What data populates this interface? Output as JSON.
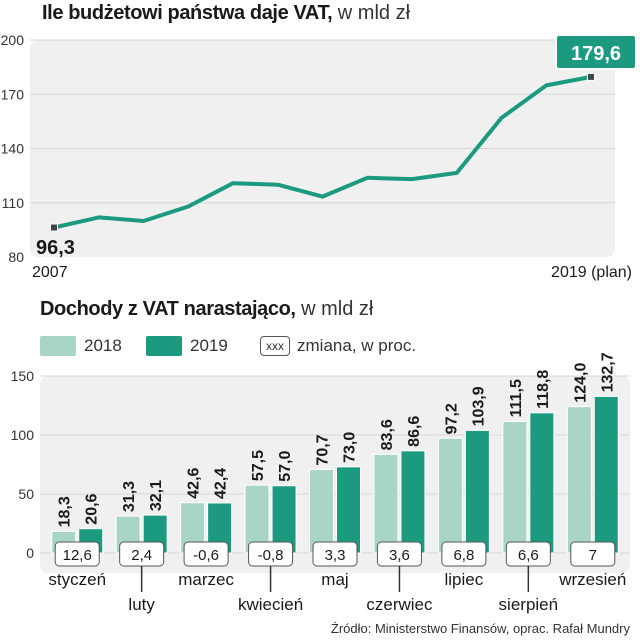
{
  "top_title": {
    "bold": "Ile budżetowi państwa daje VAT,",
    "unit": " w mld zł"
  },
  "bottom_title": {
    "bold": "Dochody z VAT narastająco,",
    "unit": " w mld zł"
  },
  "legend": {
    "s2018": "2018",
    "s2019": "2019",
    "change_box": "xxx",
    "change_label": "zmiana, w proc."
  },
  "source": "Źródło: Ministerstwo Finansów, oprac. Rafał Mundry",
  "colors": {
    "light_teal": "#a9d5c8",
    "dark_teal": "#1b9a80",
    "panel": "#f0f0f0",
    "grid": "#d6d6d6"
  },
  "chart_data": [
    {
      "type": "line",
      "title": "Ile budżetowi państwa daje VAT, w mld zł",
      "x": [
        2007,
        2008,
        2009,
        2010,
        2011,
        2012,
        2013,
        2014,
        2015,
        2016,
        2017,
        2018,
        2019
      ],
      "x_tick_labels": [
        "2007",
        "2019 (plan)"
      ],
      "y": [
        96.3,
        101.9,
        99.9,
        107.9,
        120.8,
        120.0,
        113.4,
        123.8,
        123.1,
        126.5,
        156.9,
        174.9,
        179.6
      ],
      "ylim": [
        80,
        200
      ],
      "yticks": [
        80,
        110,
        140,
        170,
        200
      ],
      "labels": {
        "first": "96,3",
        "last": "179,6"
      },
      "grid": true
    },
    {
      "type": "bar",
      "title": "Dochody z VAT narastająco, w mld zł",
      "categories": [
        "styczeń",
        "luty",
        "marzec",
        "kwiecień",
        "maj",
        "czerwiec",
        "lipiec",
        "sierpień",
        "wrzesień"
      ],
      "series": [
        {
          "name": "2018",
          "values": [
            18.3,
            31.3,
            42.6,
            57.5,
            70.7,
            83.6,
            97.2,
            111.5,
            124.0
          ],
          "labels": [
            "18,3",
            "31,3",
            "42,6",
            "57,5",
            "70,7",
            "83,6",
            "97,2",
            "111,5",
            "124,0"
          ]
        },
        {
          "name": "2019",
          "values": [
            20.6,
            32.1,
            42.4,
            57.0,
            73.0,
            86.6,
            103.9,
            118.8,
            132.7
          ],
          "labels": [
            "20,6",
            "32,1",
            "42,4",
            "57,0",
            "73,0",
            "86,6",
            "103,9",
            "118,8",
            "132,7"
          ]
        }
      ],
      "change_pct": [
        "12,6",
        "2,4",
        "-0,6",
        "-0,8",
        "3,3",
        "3,6",
        "6,8",
        "6,6",
        "7"
      ],
      "ylim": [
        0,
        150
      ],
      "yticks": [
        0,
        50,
        100,
        150
      ],
      "grid": true,
      "legend": "top-left"
    }
  ]
}
